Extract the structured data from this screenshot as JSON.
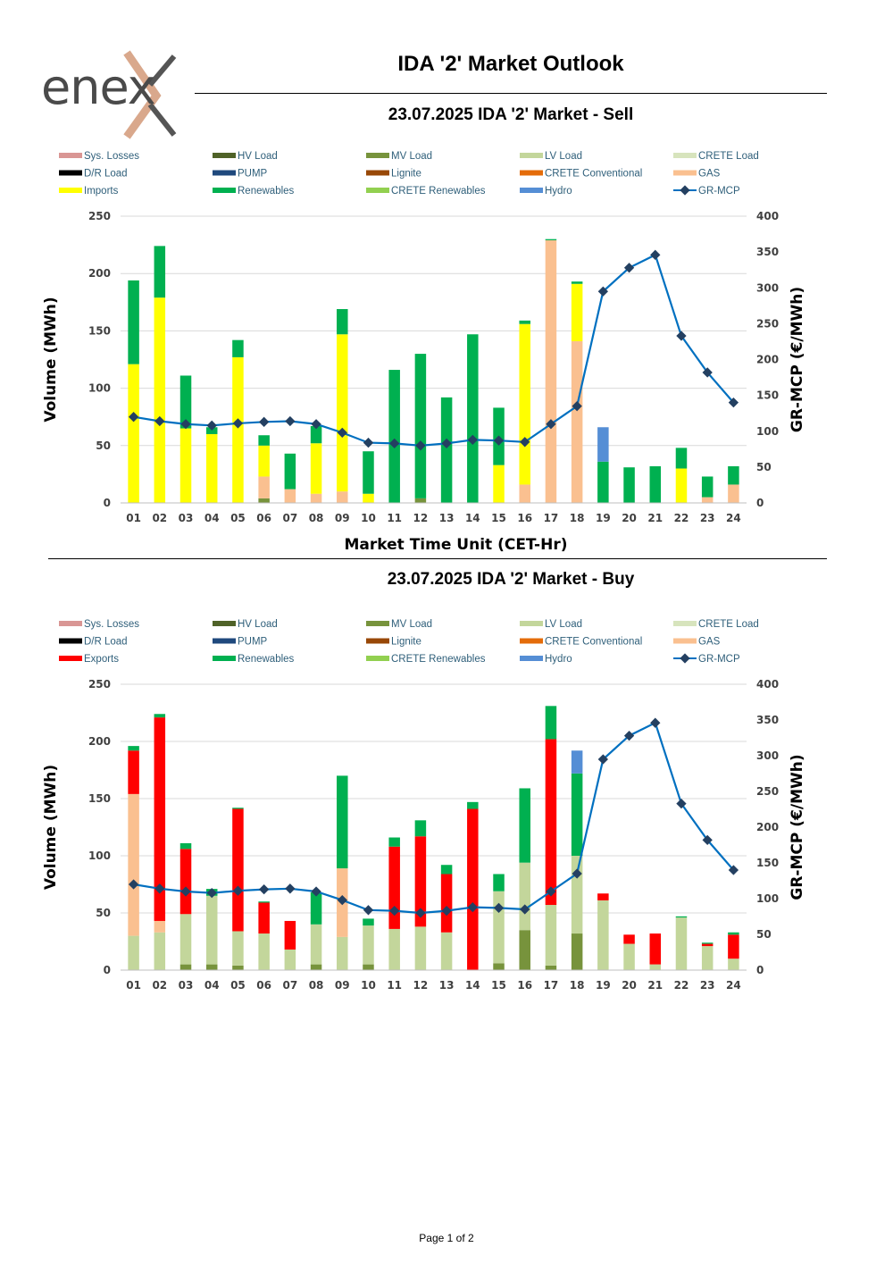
{
  "header": {
    "logo_text": "enex",
    "main_title": "IDA '2' Market Outlook"
  },
  "sections": {
    "sell_title": "23.07.2025  IDA '2' Market - Sell",
    "buy_title": "23.07.2025  IDA '2' Market - Buy"
  },
  "footer": {
    "page_label": "Page 1 of 2"
  },
  "colors": {
    "Sys. Losses": "#d99694",
    "HV Load": "#4f6228",
    "MV Load": "#77933c",
    "LV Load": "#c3d69b",
    "CRETE Load": "#d7e4bd",
    "D/R Load": "#000000",
    "PUMP": "#1f497d",
    "Lignite": "#984807",
    "CRETE Conventional": "#e46c0a",
    "GAS": "#fac090",
    "Imports": "#ffff00",
    "Exports": "#ff0000",
    "Renewables": "#00b050",
    "CRETE Renewables": "#92d050",
    "Hydro": "#558ed5",
    "GR-MCP": "#0070c0",
    "marker": "#244061"
  },
  "chart_data": [
    {
      "id": "sell",
      "type": "bar",
      "stacked": true,
      "title": "23.07.2025  IDA '2' Market - Sell",
      "xlabel": "Market Time Unit (CET-Hr)",
      "ylabel": "Volume (MWh)",
      "y2label": "GR-MCP (€/MWh)",
      "ylim": [
        0,
        250
      ],
      "y2lim": [
        0,
        400
      ],
      "yticks": [
        "0",
        "50",
        "100",
        "150",
        "200",
        "250"
      ],
      "y2ticks": [
        "0",
        "50",
        "100",
        "150",
        "200",
        "250",
        "300",
        "350",
        "400"
      ],
      "grid": true,
      "legend": [
        "Sys. Losses",
        "HV Load",
        "MV Load",
        "LV Load",
        "CRETE Load",
        "D/R Load",
        "PUMP",
        "Lignite",
        "CRETE Conventional",
        "GAS",
        "Imports",
        "Renewables",
        "CRETE Renewables",
        "Hydro",
        "GR-MCP"
      ],
      "categories": [
        "01",
        "02",
        "03",
        "04",
        "05",
        "06",
        "07",
        "08",
        "09",
        "10",
        "11",
        "12",
        "13",
        "14",
        "15",
        "16",
        "17",
        "18",
        "19",
        "20",
        "21",
        "22",
        "23",
        "24"
      ],
      "series": [
        {
          "name": "MV Load",
          "values": [
            0,
            0,
            0,
            0,
            0,
            4,
            0,
            0,
            0,
            0,
            0,
            4,
            0,
            0,
            0,
            0,
            0,
            0,
            0,
            0,
            0,
            0,
            0,
            0
          ]
        },
        {
          "name": "GAS",
          "values": [
            0,
            0,
            0,
            0,
            0,
            19,
            12,
            8,
            10,
            0,
            0,
            0,
            0,
            0,
            0,
            16,
            229,
            141,
            0,
            0,
            0,
            0,
            5,
            16
          ]
        },
        {
          "name": "Imports",
          "values": [
            121,
            179,
            65,
            60,
            127,
            27,
            0,
            44,
            137,
            8,
            0,
            0,
            0,
            0,
            33,
            140,
            0,
            50,
            0,
            0,
            0,
            30,
            0,
            0
          ]
        },
        {
          "name": "Renewables",
          "values": [
            73,
            45,
            46,
            6,
            15,
            9,
            31,
            15,
            22,
            37,
            116,
            126,
            92,
            147,
            50,
            3,
            1,
            2,
            36,
            31,
            32,
            18,
            18,
            16
          ]
        },
        {
          "name": "Hydro",
          "values": [
            0,
            0,
            0,
            0,
            0,
            0,
            0,
            0,
            0,
            0,
            0,
            0,
            0,
            0,
            0,
            0,
            0,
            0,
            30,
            0,
            0,
            0,
            0,
            0
          ]
        }
      ],
      "line": {
        "name": "GR-MCP",
        "axis": "right",
        "values": [
          120,
          114,
          110,
          108,
          111,
          113,
          114,
          110,
          98,
          84,
          83,
          80,
          83,
          88,
          87,
          85,
          110,
          135,
          295,
          328,
          346,
          233,
          182,
          140
        ]
      }
    },
    {
      "id": "buy",
      "type": "bar",
      "stacked": true,
      "title": "23.07.2025  IDA '2' Market - Buy",
      "xlabel": "",
      "ylabel": "Volume (MWh)",
      "y2label": "GR-MCP (€/MWh)",
      "ylim": [
        0,
        250
      ],
      "y2lim": [
        0,
        400
      ],
      "yticks": [
        "0",
        "50",
        "100",
        "150",
        "200",
        "250"
      ],
      "y2ticks": [
        "0",
        "50",
        "100",
        "150",
        "200",
        "250",
        "300",
        "350",
        "400"
      ],
      "grid": true,
      "legend": [
        "Sys. Losses",
        "HV Load",
        "MV Load",
        "LV Load",
        "CRETE Load",
        "D/R Load",
        "PUMP",
        "Lignite",
        "CRETE Conventional",
        "GAS",
        "Exports",
        "Renewables",
        "CRETE Renewables",
        "Hydro",
        "GR-MCP"
      ],
      "categories": [
        "01",
        "02",
        "03",
        "04",
        "05",
        "06",
        "07",
        "08",
        "09",
        "10",
        "11",
        "12",
        "13",
        "14",
        "15",
        "16",
        "17",
        "18",
        "19",
        "20",
        "21",
        "22",
        "23",
        "24"
      ],
      "series": [
        {
          "name": "MV Load",
          "values": [
            0,
            0,
            5,
            5,
            4,
            0,
            0,
            5,
            0,
            5,
            0,
            0,
            0,
            0,
            6,
            35,
            4,
            32,
            0,
            0,
            0,
            0,
            0,
            0
          ]
        },
        {
          "name": "LV Load",
          "values": [
            30,
            33,
            44,
            60,
            30,
            32,
            18,
            35,
            29,
            34,
            36,
            38,
            33,
            0,
            63,
            59,
            53,
            68,
            61,
            23,
            5,
            46,
            21,
            10
          ]
        },
        {
          "name": "GAS",
          "values": [
            124,
            10,
            0,
            0,
            0,
            0,
            0,
            0,
            60,
            0,
            0,
            0,
            0,
            0,
            0,
            0,
            0,
            0,
            0,
            0,
            0,
            0,
            0,
            0
          ]
        },
        {
          "name": "Exports",
          "values": [
            38,
            178,
            57,
            0,
            107,
            27,
            25,
            0,
            0,
            0,
            72,
            79,
            51,
            141,
            0,
            0,
            145,
            0,
            6,
            8,
            27,
            0,
            2,
            21
          ]
        },
        {
          "name": "Renewables",
          "values": [
            4,
            3,
            5,
            6,
            1,
            1,
            0,
            28,
            81,
            6,
            8,
            14,
            8,
            6,
            15,
            65,
            29,
            72,
            0,
            0,
            0,
            1,
            1,
            2
          ]
        },
        {
          "name": "Hydro",
          "values": [
            0,
            0,
            0,
            0,
            0,
            0,
            0,
            0,
            0,
            0,
            0,
            0,
            0,
            0,
            0,
            0,
            0,
            20,
            0,
            0,
            0,
            0,
            0,
            0
          ]
        }
      ],
      "line": {
        "name": "GR-MCP",
        "axis": "right",
        "values": [
          120,
          114,
          110,
          108,
          111,
          113,
          114,
          110,
          98,
          84,
          83,
          80,
          83,
          88,
          87,
          85,
          110,
          135,
          295,
          328,
          346,
          233,
          182,
          140
        ]
      }
    }
  ]
}
